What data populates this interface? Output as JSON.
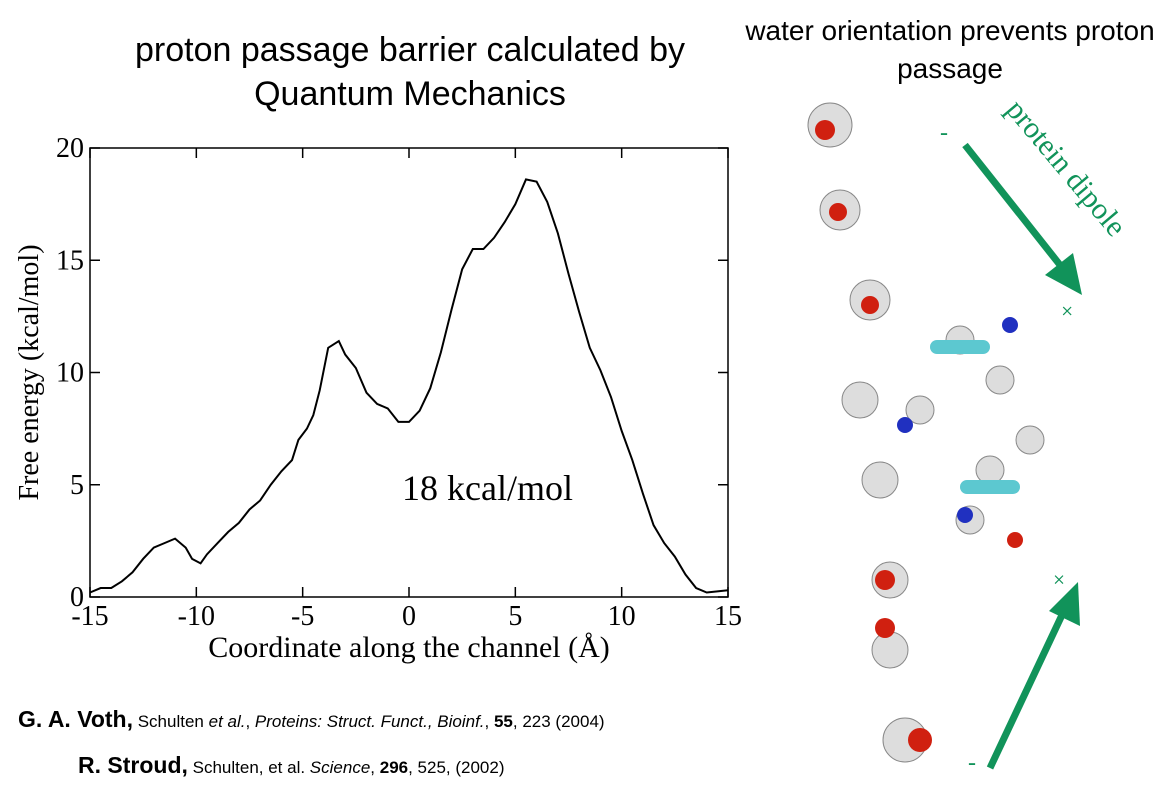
{
  "chart_data": {
    "type": "line",
    "title": "proton passage barrier calculated by Quantum Mechanics",
    "xlabel": "Coordinate along the channel (Å)",
    "ylabel": "Free energy (kcal/mol)",
    "annotation": "18 kcal/mol",
    "x": [
      -15,
      -14.5,
      -14,
      -13.5,
      -13,
      -12.5,
      -12,
      -11.5,
      -11,
      -10.5,
      -10.2,
      -9.8,
      -9.5,
      -9,
      -8.5,
      -8,
      -7.5,
      -7,
      -6.5,
      -6,
      -5.5,
      -5.2,
      -4.8,
      -4.5,
      -4.2,
      -3.8,
      -3.3,
      -3,
      -2.5,
      -2,
      -1.5,
      -1,
      -0.5,
      0,
      0.5,
      1,
      1.5,
      2,
      2.5,
      3,
      3.5,
      4,
      4.5,
      5,
      5.5,
      6,
      6.5,
      7,
      7.5,
      8,
      8.5,
      9,
      9.5,
      10,
      10.5,
      11,
      11.5,
      12,
      12.5,
      13,
      13.5,
      14,
      14.5,
      15
    ],
    "series": [
      {
        "color": "#000000",
        "values": [
          0.2,
          0.4,
          0.4,
          0.7,
          1.1,
          1.7,
          2.2,
          2.4,
          2.6,
          2.2,
          1.7,
          1.5,
          1.9,
          2.4,
          2.9,
          3.3,
          3.9,
          4.3,
          5.0,
          5.6,
          6.1,
          7.0,
          7.5,
          8.1,
          9.2,
          11.1,
          11.4,
          10.8,
          10.2,
          9.1,
          8.6,
          8.4,
          7.8,
          7.8,
          8.3,
          9.3,
          10.9,
          12.8,
          14.6,
          15.5,
          15.5,
          16.0,
          16.7,
          17.5,
          18.6,
          18.5,
          17.6,
          16.2,
          14.4,
          12.7,
          11.1,
          10.1,
          8.9,
          7.4,
          6.1,
          4.6,
          3.2,
          2.4,
          1.8,
          1.0,
          0.4,
          0.2,
          0.25,
          0.3
        ]
      }
    ],
    "xlim": [
      -15,
      15
    ],
    "xticks": [
      -15,
      -10,
      -5,
      0,
      5,
      10,
      15
    ],
    "ylim": [
      0,
      20
    ],
    "yticks": [
      0,
      5,
      10,
      15,
      20
    ]
  },
  "figure": {
    "title": "water orientation prevents proton passage",
    "dipole_label": "protein dipole",
    "signs": [
      "-",
      "+",
      "+",
      "-"
    ]
  },
  "citations": [
    [
      "G. A. Voth,",
      " Schulten ",
      "et al.",
      ", ",
      "Proteins: Struct. Funct., Bioinf.",
      ", ",
      "55",
      ", 223 (2004)"
    ],
    [
      "R. Stroud,",
      " Schulten, et al. ",
      "Science",
      ", ",
      "296",
      ", 525, (2002)"
    ]
  ]
}
